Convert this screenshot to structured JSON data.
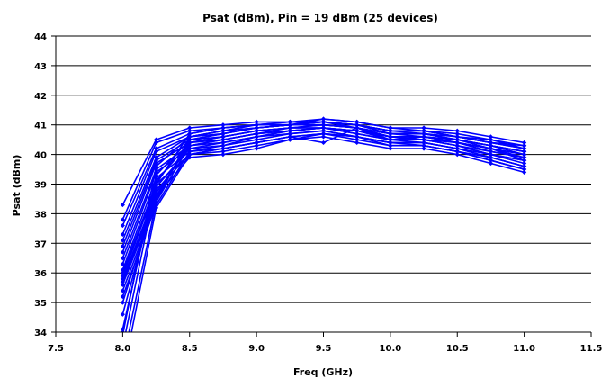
{
  "chart_data": {
    "type": "line",
    "title": "Psat (dBm), Pin = 19 dBm (25 devices)",
    "xlabel": "Freq (GHz)",
    "ylabel": "Psat (dBm)",
    "xlim": [
      7.5,
      11.5
    ],
    "ylim": [
      34,
      44
    ],
    "xticks": [
      "7.5",
      "8.0",
      "8.5",
      "9.0",
      "9.5",
      "10.0",
      "10.5",
      "11.0",
      "11.5"
    ],
    "yticks": [
      "34",
      "35",
      "36",
      "37",
      "38",
      "39",
      "40",
      "41",
      "42",
      "43",
      "44"
    ],
    "grid": "horizontal",
    "legend": "none",
    "line_color": "#0000ff",
    "x": [
      8.0,
      8.25,
      8.5,
      8.75,
      9.0,
      9.25,
      9.5,
      9.75,
      10.0,
      10.25,
      10.5,
      10.75,
      11.0
    ],
    "series": [
      {
        "values": [
          38.3,
          40.5,
          40.9,
          41.0,
          41.1,
          41.1,
          41.2,
          41.1,
          40.9,
          40.9,
          40.8,
          40.6,
          40.4
        ]
      },
      {
        "values": [
          37.8,
          40.4,
          40.8,
          40.9,
          41.0,
          41.1,
          41.1,
          41.0,
          40.8,
          40.8,
          40.6,
          40.5,
          40.2
        ]
      },
      {
        "values": [
          37.6,
          40.2,
          40.7,
          40.9,
          41.0,
          41.0,
          41.1,
          41.0,
          40.8,
          40.8,
          40.6,
          40.4,
          40.3
        ]
      },
      {
        "values": [
          37.3,
          40.1,
          40.6,
          40.8,
          40.9,
          41.0,
          41.1,
          41.0,
          40.7,
          40.7,
          40.5,
          40.3,
          40.1
        ]
      },
      {
        "values": [
          37.1,
          39.9,
          40.6,
          40.7,
          40.9,
          41.0,
          41.0,
          40.9,
          40.7,
          40.7,
          40.5,
          40.3,
          40.0
        ]
      },
      {
        "values": [
          36.9,
          39.8,
          40.5,
          40.6,
          40.8,
          40.9,
          41.0,
          40.9,
          40.6,
          40.6,
          40.5,
          40.2,
          40.0
        ]
      },
      {
        "values": [
          36.7,
          39.7,
          40.4,
          40.5,
          40.7,
          40.9,
          40.9,
          40.8,
          40.5,
          40.6,
          40.4,
          40.1,
          39.9
        ]
      },
      {
        "values": [
          36.5,
          39.5,
          40.3,
          40.4,
          40.6,
          40.8,
          40.9,
          40.7,
          40.5,
          40.5,
          40.3,
          40.0,
          39.8
        ]
      },
      {
        "values": [
          36.3,
          39.4,
          40.2,
          40.3,
          40.5,
          40.7,
          40.8,
          40.6,
          40.4,
          40.4,
          40.2,
          39.9,
          39.6
        ]
      },
      {
        "values": [
          36.1,
          39.2,
          40.1,
          40.2,
          40.4,
          40.6,
          40.7,
          40.5,
          40.3,
          40.3,
          40.1,
          39.8,
          39.5
        ]
      },
      {
        "values": [
          36.0,
          39.0,
          40.0,
          40.1,
          40.3,
          40.5,
          40.6,
          40.4,
          40.2,
          40.2,
          40.0,
          39.7,
          39.4
        ]
      },
      {
        "values": [
          35.9,
          38.9,
          40.2,
          40.4,
          40.6,
          40.7,
          40.8,
          40.6,
          40.4,
          40.4,
          40.2,
          40.0,
          39.8
        ]
      },
      {
        "values": [
          35.8,
          38.7,
          40.3,
          40.5,
          40.7,
          40.8,
          40.9,
          40.7,
          40.5,
          40.5,
          40.3,
          40.1,
          39.9
        ]
      },
      {
        "values": [
          35.7,
          38.6,
          40.4,
          40.6,
          40.8,
          40.9,
          40.9,
          40.8,
          40.6,
          40.6,
          40.4,
          40.2,
          40.0
        ]
      },
      {
        "values": [
          35.6,
          38.5,
          40.5,
          40.7,
          40.9,
          41.0,
          41.0,
          40.9,
          40.7,
          40.6,
          40.5,
          40.3,
          40.1
        ]
      },
      {
        "values": [
          35.4,
          38.4,
          40.6,
          40.8,
          40.9,
          41.0,
          41.1,
          40.9,
          40.7,
          40.7,
          40.6,
          40.4,
          40.2
        ]
      },
      {
        "values": [
          35.2,
          38.3,
          40.1,
          40.3,
          40.6,
          40.8,
          40.9,
          40.8,
          40.6,
          40.5,
          40.3,
          40.0,
          39.7
        ]
      },
      {
        "values": [
          35.0,
          38.6,
          39.9,
          40.0,
          40.2,
          40.5,
          40.7,
          40.6,
          40.3,
          40.3,
          40.1,
          39.8,
          39.5
        ]
      },
      {
        "values": [
          34.6,
          38.8,
          40.0,
          40.2,
          40.4,
          40.6,
          40.4,
          40.9,
          40.5,
          40.4,
          40.2,
          39.9,
          39.6
        ]
      },
      {
        "values": [
          34.1,
          39.1,
          40.4,
          40.6,
          40.8,
          40.9,
          41.0,
          40.9,
          40.6,
          40.6,
          40.4,
          40.2,
          39.9
        ]
      },
      {
        "values": [
          34.0,
          39.3,
          40.5,
          40.7,
          40.9,
          41.0,
          41.1,
          41.0,
          40.8,
          40.7,
          40.5,
          40.3,
          40.1
        ]
      },
      {
        "values": [
          33.9,
          39.6,
          40.6,
          40.8,
          41.0,
          41.1,
          41.1,
          41.0,
          40.8,
          40.8,
          40.6,
          40.4,
          40.2
        ]
      },
      {
        "values": [
          33.5,
          39.0,
          40.7,
          40.9,
          41.0,
          41.0,
          41.2,
          41.1,
          40.9,
          40.8,
          40.7,
          40.5,
          40.3
        ]
      },
      {
        "values": [
          33.0,
          38.4,
          40.3,
          40.5,
          40.7,
          40.8,
          40.9,
          40.8,
          40.6,
          40.5,
          40.4,
          40.2,
          39.8
        ]
      },
      {
        "values": [
          32.5,
          38.2,
          40.0,
          40.2,
          40.4,
          40.6,
          40.7,
          40.6,
          40.4,
          40.3,
          40.1,
          39.9,
          39.6
        ]
      }
    ]
  }
}
